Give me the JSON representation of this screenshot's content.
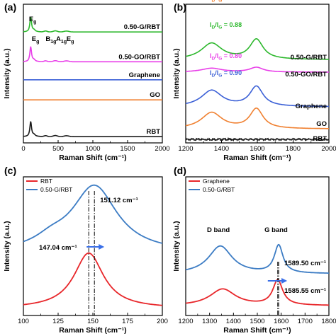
{
  "colors": {
    "black": "#1a1a1a",
    "green": "#2db82d",
    "magenta": "#e83ee8",
    "blue": "#3a5fd6",
    "orange": "#f08030",
    "red": "#e8262a",
    "steelblue": "#3c7cc4",
    "arrow": "#3a6fe8"
  },
  "chart_data": [
    {
      "id": "a",
      "panel_label": "(a)",
      "type": "line",
      "xlabel": "Raman Shift (cm⁻¹)",
      "ylabel": "Intensity (a.u.)",
      "xlim": [
        0,
        2000
      ],
      "xticks": [
        "0",
        "500",
        "1000",
        "1500",
        "2000"
      ],
      "series": [
        {
          "name": "0.50-G/RBT",
          "color": "green",
          "offset": 0.8,
          "shape": "rbt"
        },
        {
          "name": "0.50-GO/RBT",
          "color": "magenta",
          "offset": 0.585,
          "shape": "rbt"
        },
        {
          "name": "Graphene",
          "color": "blue",
          "offset": 0.455,
          "shape": "flat"
        },
        {
          "name": "GO",
          "color": "orange",
          "offset": 0.31,
          "shape": "flat"
        },
        {
          "name": "RBT",
          "color": "black",
          "offset": 0.045,
          "shape": "rbt"
        }
      ],
      "peak_labels": [
        {
          "text": "E",
          "sub": "g",
          "x": 80
        },
        {
          "text": "E",
          "sub": "g",
          "x": 120
        },
        {
          "text": "B",
          "sub": "1g",
          "x": 320
        },
        {
          "text": "A",
          "sub": "1g",
          "x": 470
        },
        {
          "text": "E",
          "sub": "g",
          "x": 620
        }
      ]
    },
    {
      "id": "b",
      "panel_label": "(b)",
      "type": "line",
      "xlabel": "Raman Shift (cm⁻¹)",
      "ylabel": "Intensity (a.u.)",
      "xlim": [
        1200,
        2000
      ],
      "xticks": [
        "1200",
        "1400",
        "1600",
        "1800",
        "2000"
      ],
      "series": [
        {
          "name": "0.50-G/RBT",
          "color": "green",
          "ratio": "0.88",
          "offset": 0.6,
          "scale": 0.25
        },
        {
          "name": "0.50-GO/RBT",
          "color": "magenta",
          "ratio": "0.80",
          "offset": 0.51,
          "scale": 0.06
        },
        {
          "name": "Graphene",
          "color": "blue",
          "ratio": "0.90",
          "offset": 0.26,
          "scale": 0.25
        },
        {
          "name": "GO",
          "color": "orange",
          "ratio": "0.82",
          "offset": 0.1,
          "scale": 0.25
        },
        {
          "name": "RBT",
          "color": "black",
          "ratio": "",
          "offset": 0.025,
          "scale": 0.0
        }
      ]
    },
    {
      "id": "c",
      "panel_label": "(c)",
      "type": "line",
      "xlabel": "Raman Shift (cm⁻¹)",
      "ylabel": "Intensity (a.u.)",
      "xlim": [
        100,
        200
      ],
      "xticks": [
        "100",
        "125",
        "150",
        "175",
        "200"
      ],
      "series": [
        {
          "name": "RBT",
          "color": "red",
          "peak": 147.04
        },
        {
          "name": "0.50-G/RBT",
          "color": "steelblue",
          "peak": 151.12
        }
      ],
      "annotations": [
        "151.12 cm⁻¹",
        "147.04 cm⁻¹"
      ]
    },
    {
      "id": "d",
      "panel_label": "(d)",
      "type": "line",
      "xlabel": "Raman Shift (cm⁻¹)",
      "ylabel": "Intensity (a.u.)",
      "xlim": [
        1200,
        1800
      ],
      "xticks": [
        "1200",
        "1300",
        "1400",
        "1500",
        "1600",
        "1700",
        "1800"
      ],
      "series": [
        {
          "name": "Graphene",
          "color": "red",
          "peak": 1585.55
        },
        {
          "name": "0.50-G/RBT",
          "color": "steelblue",
          "peak": 1589.5
        }
      ],
      "annotations": [
        "D band",
        "G band",
        "1589.50 cm⁻¹",
        "1585.55 cm⁻¹"
      ]
    }
  ]
}
